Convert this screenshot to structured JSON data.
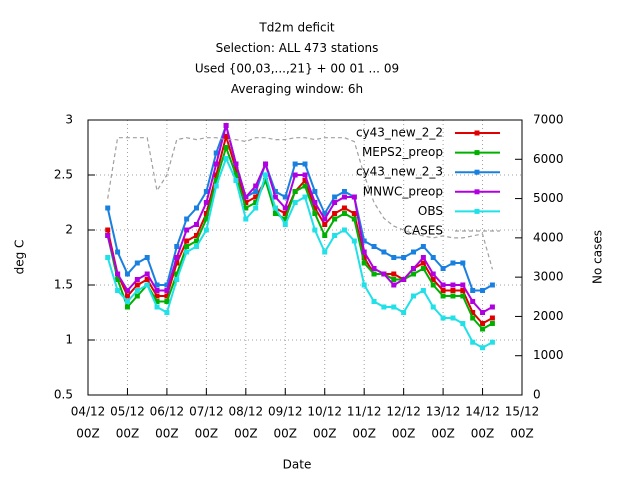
{
  "chart_data": {
    "type": "line",
    "title": [
      "Td2m deficit",
      "Selection: ALL    473 stations",
      "Used {00,03,...,21} + 00 01 ... 09",
      "Averaging window:  6h"
    ],
    "xlabel": "Date",
    "ylabel": "deg C",
    "y2label": "No cases",
    "x": [
      12,
      18,
      24,
      30,
      36,
      42,
      48,
      54,
      60,
      66,
      72,
      78,
      84,
      90,
      96,
      102,
      108,
      114,
      120,
      126,
      132,
      138,
      144,
      150,
      156,
      162,
      168,
      174,
      180,
      186,
      192,
      198,
      204,
      210,
      216,
      222,
      228,
      234,
      240,
      246
    ],
    "xlim": [
      0,
      264
    ],
    "xticks": [
      {
        "value": 0,
        "label": [
          "04/12",
          "00Z"
        ]
      },
      {
        "value": 24,
        "label": [
          "05/12",
          "00Z"
        ]
      },
      {
        "value": 48,
        "label": [
          "06/12",
          "00Z"
        ]
      },
      {
        "value": 72,
        "label": [
          "07/12",
          "00Z"
        ]
      },
      {
        "value": 96,
        "label": [
          "08/12",
          "00Z"
        ]
      },
      {
        "value": 120,
        "label": [
          "09/12",
          "00Z"
        ]
      },
      {
        "value": 144,
        "label": [
          "10/12",
          "00Z"
        ]
      },
      {
        "value": 168,
        "label": [
          "11/12",
          "00Z"
        ]
      },
      {
        "value": 192,
        "label": [
          "12/12",
          "00Z"
        ]
      },
      {
        "value": 216,
        "label": [
          "13/12",
          "00Z"
        ]
      },
      {
        "value": 240,
        "label": [
          "14/12",
          "00Z"
        ]
      },
      {
        "value": 264,
        "label": [
          "15/12",
          "00Z"
        ]
      }
    ],
    "ylim": [
      0.5,
      3
    ],
    "yticks": [
      0.5,
      1,
      1.5,
      2,
      2.5,
      3
    ],
    "y2lim": [
      0,
      7000
    ],
    "y2ticks": [
      0,
      1000,
      2000,
      3000,
      4000,
      5000,
      6000,
      7000
    ],
    "grid": true,
    "legend": "top right",
    "series": [
      {
        "name": "cy43_new_2_2",
        "color": "#e00000",
        "marker": true,
        "values": [
          2.0,
          1.6,
          1.4,
          1.5,
          1.55,
          1.4,
          1.4,
          1.7,
          1.9,
          1.95,
          2.15,
          2.5,
          2.85,
          2.55,
          2.25,
          2.3,
          2.45,
          2.2,
          2.15,
          2.35,
          2.45,
          2.2,
          2.05,
          2.15,
          2.2,
          2.15,
          1.75,
          1.6,
          1.6,
          1.6,
          1.55,
          1.65,
          1.7,
          1.55,
          1.45,
          1.45,
          1.45,
          1.25,
          1.15,
          1.2
        ]
      },
      {
        "name": "MEPS2_preop",
        "color": "#00b000",
        "marker": true,
        "values": [
          1.95,
          1.55,
          1.3,
          1.4,
          1.5,
          1.35,
          1.35,
          1.6,
          1.85,
          1.9,
          2.1,
          2.45,
          2.75,
          2.5,
          2.2,
          2.25,
          2.45,
          2.15,
          2.1,
          2.35,
          2.4,
          2.15,
          1.95,
          2.1,
          2.15,
          2.1,
          1.7,
          1.6,
          1.6,
          1.55,
          1.55,
          1.6,
          1.65,
          1.5,
          1.4,
          1.4,
          1.4,
          1.2,
          1.1,
          1.15
        ]
      },
      {
        "name": "cy43_new_2_3",
        "color": "#1a80e0",
        "marker": true,
        "values": [
          2.2,
          1.8,
          1.6,
          1.7,
          1.75,
          1.5,
          1.5,
          1.85,
          2.1,
          2.2,
          2.35,
          2.7,
          2.95,
          2.6,
          2.3,
          2.35,
          2.6,
          2.35,
          2.3,
          2.6,
          2.6,
          2.35,
          2.15,
          2.3,
          2.35,
          2.3,
          1.9,
          1.85,
          1.8,
          1.75,
          1.75,
          1.8,
          1.85,
          1.75,
          1.65,
          1.7,
          1.7,
          1.45,
          1.45,
          1.5
        ]
      },
      {
        "name": "MNWC_preop",
        "color": "#b000e0",
        "marker": true,
        "values": [
          1.95,
          1.6,
          1.45,
          1.55,
          1.6,
          1.45,
          1.45,
          1.75,
          2.0,
          2.05,
          2.25,
          2.6,
          2.95,
          2.6,
          2.3,
          2.4,
          2.6,
          2.3,
          2.2,
          2.5,
          2.5,
          2.25,
          2.1,
          2.25,
          2.3,
          2.3,
          1.8,
          1.65,
          1.6,
          1.5,
          1.55,
          1.65,
          1.75,
          1.6,
          1.5,
          1.5,
          1.5,
          1.35,
          1.25,
          1.3
        ]
      },
      {
        "name": "OBS",
        "color": "#20e0e8",
        "marker": true,
        "values": [
          1.75,
          1.45,
          1.35,
          1.45,
          1.5,
          1.3,
          1.25,
          1.55,
          1.8,
          1.85,
          2.0,
          2.4,
          2.65,
          2.45,
          2.1,
          2.2,
          2.5,
          2.2,
          2.05,
          2.25,
          2.3,
          2.0,
          1.8,
          1.95,
          2.0,
          1.9,
          1.5,
          1.35,
          1.3,
          1.3,
          1.25,
          1.4,
          1.45,
          1.3,
          1.2,
          1.2,
          1.15,
          0.98,
          0.93,
          0.98
        ]
      },
      {
        "name": "CASES",
        "color": "#a0a0a0",
        "marker": false,
        "dashed": true,
        "axis": "y2",
        "values": [
          5000,
          6550,
          6550,
          6550,
          6550,
          5200,
          5600,
          6500,
          6550,
          6500,
          6550,
          6550,
          6500,
          6500,
          6450,
          6550,
          6550,
          6500,
          6500,
          6550,
          6550,
          6500,
          6550,
          6550,
          6550,
          6450,
          5600,
          4900,
          4500,
          4300,
          4200,
          4100,
          4050,
          4000,
          4050,
          4000,
          4000,
          4050,
          4100,
          3200
        ]
      }
    ]
  }
}
